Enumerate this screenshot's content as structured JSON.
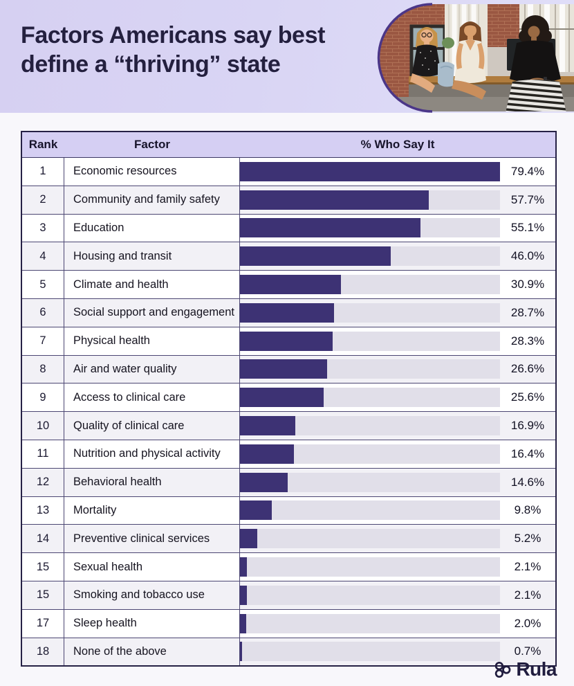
{
  "header": {
    "title_line1": "Factors Americans say best",
    "title_line2": "define a “thriving” state"
  },
  "table": {
    "columns": [
      "Rank",
      "Factor",
      "% Who Say It"
    ],
    "max_value": 79.4,
    "rows": [
      {
        "rank": "1",
        "factor": "Economic resources",
        "pct": "79.4%",
        "value": 79.4
      },
      {
        "rank": "2",
        "factor": "Community and family safety",
        "pct": "57.7%",
        "value": 57.7
      },
      {
        "rank": "3",
        "factor": "Education",
        "pct": "55.1%",
        "value": 55.1
      },
      {
        "rank": "4",
        "factor": "Housing and transit",
        "pct": "46.0%",
        "value": 46.0
      },
      {
        "rank": "5",
        "factor": "Climate and health",
        "pct": "30.9%",
        "value": 30.9
      },
      {
        "rank": "6",
        "factor": "Social support and engagement",
        "pct": "28.7%",
        "value": 28.7
      },
      {
        "rank": "7",
        "factor": "Physical health",
        "pct": "28.3%",
        "value": 28.3
      },
      {
        "rank": "8",
        "factor": "Air and water quality",
        "pct": "26.6%",
        "value": 26.6
      },
      {
        "rank": "9",
        "factor": "Access to clinical care",
        "pct": "25.6%",
        "value": 25.6
      },
      {
        "rank": "10",
        "factor": "Quality of clinical care",
        "pct": "16.9%",
        "value": 16.9
      },
      {
        "rank": "11",
        "factor": "Nutrition and physical activity",
        "pct": "16.4%",
        "value": 16.4
      },
      {
        "rank": "12",
        "factor": "Behavioral health",
        "pct": "14.6%",
        "value": 14.6
      },
      {
        "rank": "13",
        "factor": "Mortality",
        "pct": "9.8%",
        "value": 9.8
      },
      {
        "rank": "14",
        "factor": "Preventive clinical services",
        "pct": "5.2%",
        "value": 5.2
      },
      {
        "rank": "15",
        "factor": "Sexual health",
        "pct": "2.1%",
        "value": 2.1
      },
      {
        "rank": "15",
        "factor": "Smoking and tobacco use",
        "pct": "2.1%",
        "value": 2.1
      },
      {
        "rank": "17",
        "factor": "Sleep health",
        "pct": "2.0%",
        "value": 2.0
      },
      {
        "rank": "18",
        "factor": "None of the above",
        "pct": "0.7%",
        "value": 0.7
      }
    ]
  },
  "footer": {
    "brand": "Rula"
  },
  "colors": {
    "bar_fill": "#3d3274",
    "bar_track": "#e1dfe9",
    "header_bg_start": "#d6d0f2",
    "header_bg_end": "#e0def8",
    "table_header_bg": "#d5cff3",
    "border_dark": "#262145",
    "title_text": "#24203f",
    "photo_ring": "#4b3688",
    "row_alt_bg": "#f2f1f6"
  },
  "chart_data": {
    "type": "bar",
    "orientation": "horizontal",
    "title": "Factors Americans say best define a “thriving” state",
    "columns": [
      "Rank",
      "Factor",
      "% Who Say It"
    ],
    "categories": [
      "Economic resources",
      "Community and family safety",
      "Education",
      "Housing and transit",
      "Climate and health",
      "Social support and engagement",
      "Physical health",
      "Air and water quality",
      "Access to clinical care",
      "Quality of clinical care",
      "Nutrition and physical activity",
      "Behavioral health",
      "Mortality",
      "Preventive clinical services",
      "Sexual health",
      "Smoking and tobacco use",
      "Sleep health",
      "None of the above"
    ],
    "values": [
      79.4,
      57.7,
      55.1,
      46.0,
      30.9,
      28.7,
      28.3,
      26.6,
      25.6,
      16.9,
      16.4,
      14.6,
      9.8,
      5.2,
      2.1,
      2.1,
      2.0,
      0.7
    ],
    "ranks": [
      1,
      2,
      3,
      4,
      5,
      6,
      7,
      8,
      9,
      10,
      11,
      12,
      13,
      14,
      15,
      15,
      17,
      18
    ],
    "value_labels": [
      "79.4%",
      "57.7%",
      "55.1%",
      "46.0%",
      "30.9%",
      "28.7%",
      "28.3%",
      "26.6%",
      "25.6%",
      "16.9%",
      "16.4%",
      "14.6%",
      "9.8%",
      "5.2%",
      "2.1%",
      "2.1%",
      "2.0%",
      "0.7%"
    ],
    "xlim": [
      0,
      79.4
    ],
    "grid": false,
    "legend": false,
    "note": "bar lengths scaled so the maximum value (79.4%) fills the full track"
  }
}
